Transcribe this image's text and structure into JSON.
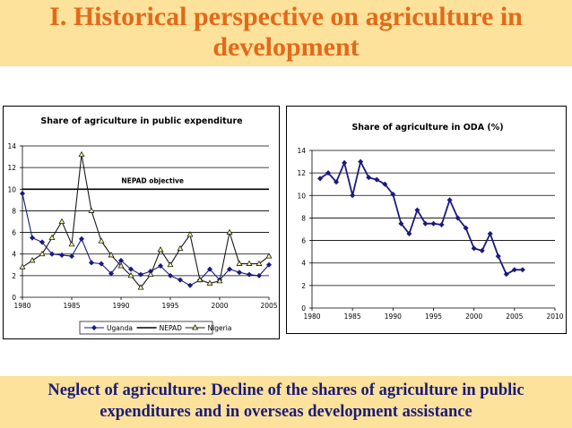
{
  "slide": {
    "title_line1": "I. Historical perspective on agriculture in",
    "title_line2": "development",
    "footer_line1": "Neglect of agriculture: Decline of the shares of agriculture in public",
    "footer_line2": "expenditures and in overseas development assistance"
  },
  "chart_data": [
    {
      "type": "line",
      "title": "Share of agriculture in public expenditure",
      "xlim": [
        1980,
        2005
      ],
      "ylim": [
        0,
        14
      ],
      "x_ticks": [
        "1980",
        "1985",
        "1990",
        "1995",
        "2000",
        "2005"
      ],
      "y_ticks": [
        "0",
        "2",
        "4",
        "6",
        "8",
        "10",
        "12",
        "14"
      ],
      "grid": true,
      "legend": "bottom",
      "annotation": "NEPAD objective",
      "x": [
        1980,
        1981,
        1982,
        1983,
        1984,
        1985,
        1986,
        1987,
        1988,
        1989,
        1990,
        1991,
        1992,
        1993,
        1994,
        1995,
        1996,
        1997,
        1998,
        1999,
        2000,
        2001,
        2002,
        2003,
        2004,
        2005
      ],
      "series": [
        {
          "name": "Uganda",
          "color": "#1a1a80",
          "marker": "diamond",
          "values": [
            9.6,
            5.5,
            5.1,
            4.0,
            3.9,
            3.8,
            5.4,
            3.2,
            3.1,
            2.2,
            3.4,
            2.6,
            2.1,
            2.4,
            2.9,
            2.0,
            1.6,
            1.1,
            1.6,
            2.6,
            1.6,
            2.6,
            2.3,
            2.1,
            2.0,
            3.0
          ]
        },
        {
          "name": "NEPAD",
          "color": "#000000",
          "marker": "none",
          "values": [
            10,
            10,
            10,
            10,
            10,
            10,
            10,
            10,
            10,
            10,
            10,
            10,
            10,
            10,
            10,
            10,
            10,
            10,
            10,
            10,
            10,
            10,
            10,
            10,
            10,
            10
          ]
        },
        {
          "name": "Nigeria",
          "color": "#1a1a1a",
          "marker": "triangle",
          "marker_fill": "#ffff99",
          "values": [
            2.8,
            3.4,
            4.0,
            5.5,
            7.0,
            4.9,
            13.2,
            8.0,
            5.2,
            3.9,
            2.9,
            2.0,
            0.9,
            2.1,
            4.4,
            3.0,
            4.5,
            5.8,
            1.6,
            1.3,
            1.5,
            6.0,
            3.1,
            3.1,
            3.1,
            3.8
          ]
        }
      ]
    },
    {
      "type": "line",
      "title": "Share of agriculture in ODA (%)",
      "xlim": [
        1980,
        2010
      ],
      "ylim": [
        0,
        14
      ],
      "x_ticks": [
        "1980",
        "1985",
        "1990",
        "1995",
        "2000",
        "2005",
        "2010"
      ],
      "y_ticks": [
        "0",
        "2",
        "4",
        "6",
        "8",
        "10",
        "12",
        "14"
      ],
      "grid": true,
      "series": [
        {
          "name": "",
          "color": "#1a1a80",
          "marker": "diamond",
          "x": [
            1981,
            1982,
            1983,
            1984,
            1985,
            1986,
            1987,
            1988,
            1989,
            1990,
            1991,
            1992,
            1993,
            1994,
            1995,
            1996,
            1997,
            1998,
            1999,
            2000,
            2001,
            2002,
            2003,
            2004,
            2005,
            2006
          ],
          "values": [
            11.5,
            12.0,
            11.2,
            12.9,
            10.0,
            13.0,
            11.6,
            11.4,
            11.0,
            10.1,
            7.5,
            6.6,
            8.7,
            7.5,
            7.5,
            7.4,
            9.6,
            8.0,
            7.1,
            5.3,
            5.1,
            6.6,
            4.6,
            3.0,
            3.4,
            3.4
          ]
        }
      ]
    }
  ]
}
